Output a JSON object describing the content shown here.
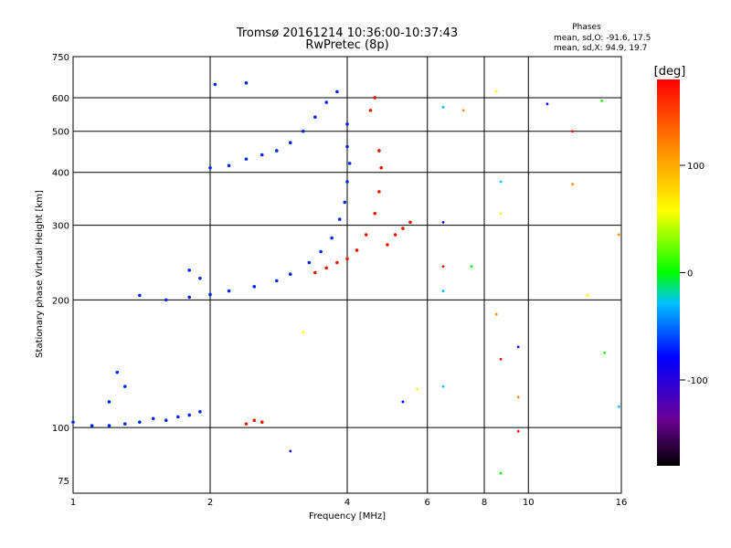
{
  "chart_data": {
    "type": "scatter",
    "title": "Tromsø 20161214 10:36:00-10:37:43",
    "subtitle": "RwPretec (8p)",
    "phases_heading": "Phases",
    "phases_o": "mean, sd,O: -91.6, 17.5",
    "phases_x": "mean, sd,X:  94.9, 19.7",
    "xlabel": "Frequency [MHz]",
    "ylabel": "Stationary phase Virtual Height [km]",
    "xscale": "log",
    "yscale": "log",
    "xlim": [
      1,
      16
    ],
    "ylim": [
      70,
      750
    ],
    "xticks": [
      1,
      2,
      4,
      6,
      8,
      10,
      16
    ],
    "yticks": [
      75,
      100,
      200,
      300,
      400,
      500,
      600,
      750
    ],
    "grid": true,
    "colorbar": {
      "label": "[deg]",
      "ticks": [
        100,
        0,
        -100
      ],
      "range": [
        -180,
        180
      ]
    },
    "series": [
      {
        "name": "O",
        "mean_phase": -91.6,
        "points": [
          [
            1.0,
            103
          ],
          [
            1.1,
            101
          ],
          [
            1.2,
            101
          ],
          [
            1.3,
            102
          ],
          [
            1.4,
            103
          ],
          [
            1.5,
            105
          ],
          [
            1.6,
            104
          ],
          [
            1.7,
            106
          ],
          [
            1.8,
            107
          ],
          [
            1.9,
            109
          ],
          [
            1.2,
            115
          ],
          [
            1.3,
            125
          ],
          [
            1.25,
            135
          ],
          [
            1.4,
            205
          ],
          [
            1.6,
            200
          ],
          [
            1.8,
            203
          ],
          [
            2.0,
            206
          ],
          [
            2.2,
            210
          ],
          [
            2.5,
            215
          ],
          [
            2.8,
            222
          ],
          [
            3.0,
            230
          ],
          [
            3.3,
            245
          ],
          [
            3.5,
            260
          ],
          [
            3.7,
            280
          ],
          [
            3.85,
            310
          ],
          [
            3.95,
            340
          ],
          [
            4.0,
            380
          ],
          [
            4.05,
            420
          ],
          [
            4.0,
            460
          ],
          [
            4.0,
            520
          ],
          [
            2.0,
            410
          ],
          [
            2.2,
            415
          ],
          [
            2.4,
            430
          ],
          [
            2.6,
            440
          ],
          [
            2.8,
            450
          ],
          [
            3.0,
            470
          ],
          [
            3.2,
            500
          ],
          [
            3.4,
            540
          ],
          [
            3.6,
            585
          ],
          [
            3.8,
            620
          ],
          [
            1.8,
            235
          ],
          [
            1.9,
            225
          ],
          [
            2.05,
            645
          ],
          [
            2.4,
            650
          ]
        ]
      },
      {
        "name": "X",
        "mean_phase": 94.9,
        "points": [
          [
            2.4,
            102
          ],
          [
            2.5,
            104
          ],
          [
            2.6,
            103
          ],
          [
            3.4,
            232
          ],
          [
            3.6,
            238
          ],
          [
            3.8,
            245
          ],
          [
            4.0,
            250
          ],
          [
            4.2,
            262
          ],
          [
            4.4,
            285
          ],
          [
            4.6,
            320
          ],
          [
            4.7,
            360
          ],
          [
            4.75,
            410
          ],
          [
            4.7,
            450
          ],
          [
            4.5,
            560
          ],
          [
            4.6,
            600
          ],
          [
            4.9,
            270
          ],
          [
            5.1,
            285
          ],
          [
            5.3,
            295
          ],
          [
            5.5,
            305
          ]
        ]
      }
    ],
    "scattered_points": [
      {
        "x": 6.5,
        "y": 570
      },
      {
        "x": 7.2,
        "y": 560
      },
      {
        "x": 8.5,
        "y": 620
      },
      {
        "x": 11.0,
        "y": 580
      },
      {
        "x": 12.5,
        "y": 500
      },
      {
        "x": 14.5,
        "y": 590
      },
      {
        "x": 8.7,
        "y": 380
      },
      {
        "x": 12.5,
        "y": 375
      },
      {
        "x": 8.7,
        "y": 320
      },
      {
        "x": 6.5,
        "y": 305
      },
      {
        "x": 6.5,
        "y": 240
      },
      {
        "x": 7.5,
        "y": 240
      },
      {
        "x": 6.5,
        "y": 210
      },
      {
        "x": 8.5,
        "y": 185
      },
      {
        "x": 13.5,
        "y": 205
      },
      {
        "x": 9.5,
        "y": 155
      },
      {
        "x": 8.7,
        "y": 145
      },
      {
        "x": 14.7,
        "y": 150
      },
      {
        "x": 6.5,
        "y": 125
      },
      {
        "x": 9.5,
        "y": 118
      },
      {
        "x": 5.7,
        "y": 123
      },
      {
        "x": 5.3,
        "y": 115
      },
      {
        "x": 9.5,
        "y": 98
      },
      {
        "x": 8.7,
        "y": 78
      },
      {
        "x": 15.8,
        "y": 112
      },
      {
        "x": 15.8,
        "y": 285
      },
      {
        "x": 3.2,
        "y": 168
      },
      {
        "x": 3.0,
        "y": 88
      }
    ]
  }
}
